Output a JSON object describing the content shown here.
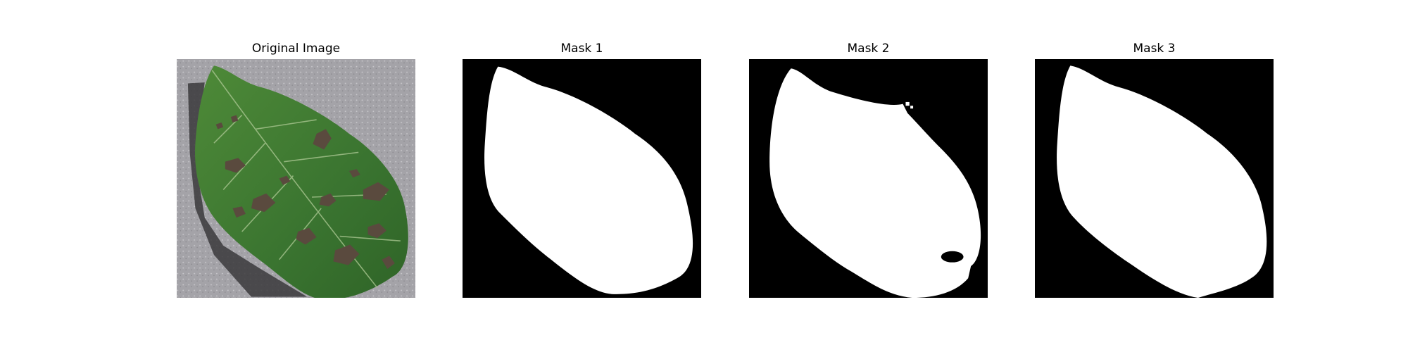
{
  "figure": {
    "panels": [
      {
        "title": "Original Image"
      },
      {
        "title": "Mask 1"
      },
      {
        "title": "Mask 2"
      },
      {
        "title": "Mask 3"
      }
    ]
  },
  "colors": {
    "background": "#a4a3a8",
    "leaf": "#3f7b2e",
    "lesion": "#5a4a3e",
    "mask_foreground": "#ffffff",
    "mask_background": "#000000"
  }
}
